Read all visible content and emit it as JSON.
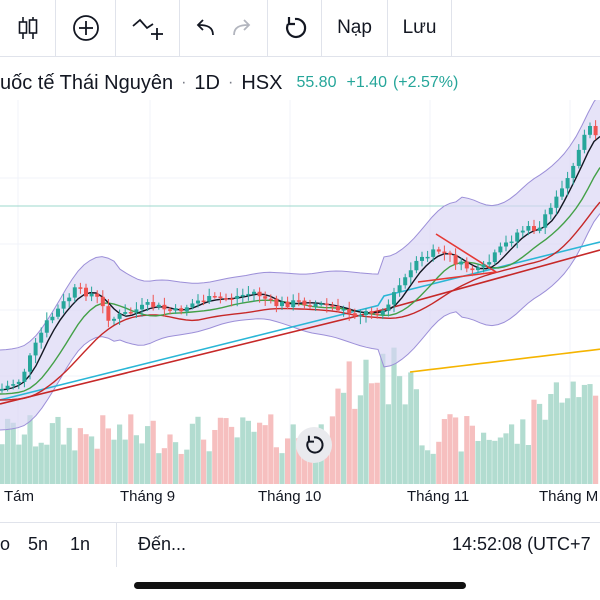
{
  "toolbar": {
    "load_label": "Nạp",
    "save_label": "Lưu",
    "icons": [
      "candle-chart-icon",
      "add-circle-icon",
      "indicator-icon",
      "undo-icon",
      "redo-icon",
      "reset-icon"
    ]
  },
  "header": {
    "symbol_name": "uốc tế Thái Nguyên",
    "interval": "1D",
    "exchange": "HSX",
    "last_price": "55.80",
    "change": "+1.40",
    "change_pct": "(+2.57%)",
    "accent_up": "#26a69a",
    "accent_down": "#ef5350"
  },
  "x_axis": {
    "ticks": [
      "Tám",
      "Tháng 9",
      "Tháng 10",
      "Tháng 11",
      "Tháng M"
    ]
  },
  "bottom_bar": {
    "range_a": "o",
    "range_b": "5n",
    "range_c": "1n",
    "goto_label": "Đến...",
    "clock": "14:52:08 (UTC+7"
  },
  "chart_data": {
    "type": "candlestick",
    "indicators": [
      "Bollinger Bands",
      "moving averages",
      "volume"
    ],
    "series_colors": {
      "up": "#26a69a",
      "down": "#ef5350",
      "band": "#9c8fd8",
      "ma_short": "#131722",
      "ma_mid": "#43a047",
      "ma_long": "#c62828",
      "ma_cyan": "#29b6d6",
      "ma_yellow": "#f5b400"
    }
  }
}
